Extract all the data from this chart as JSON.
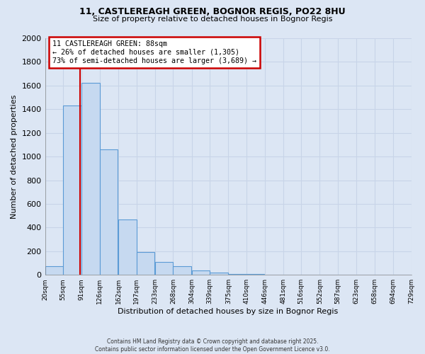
{
  "title1": "11, CASTLEREAGH GREEN, BOGNOR REGIS, PO22 8HU",
  "title2": "Size of property relative to detached houses in Bognor Regis",
  "xlabel": "Distribution of detached houses by size in Bognor Regis",
  "ylabel": "Number of detached properties",
  "bin_edges": [
    20,
    55,
    91,
    126,
    162,
    197,
    233,
    268,
    304,
    339,
    375,
    410,
    446,
    481,
    516,
    552,
    587,
    623,
    658,
    694,
    729
  ],
  "bin_labels": [
    "20sqm",
    "55sqm",
    "91sqm",
    "126sqm",
    "162sqm",
    "197sqm",
    "233sqm",
    "268sqm",
    "304sqm",
    "339sqm",
    "375sqm",
    "410sqm",
    "446sqm",
    "481sqm",
    "516sqm",
    "552sqm",
    "587sqm",
    "623sqm",
    "658sqm",
    "694sqm",
    "729sqm"
  ],
  "bar_heights": [
    75,
    1430,
    1620,
    1060,
    470,
    195,
    110,
    75,
    35,
    20,
    10,
    5,
    3,
    2,
    1,
    1,
    0,
    0,
    0,
    0
  ],
  "bar_color": "#c6d9f0",
  "bar_edge_color": "#5b9bd5",
  "vline_x": 88,
  "annotation_title": "11 CASTLEREAGH GREEN: 88sqm",
  "annotation_line1": "← 26% of detached houses are smaller (1,305)",
  "annotation_line2": "73% of semi-detached houses are larger (3,689) →",
  "annotation_box_color": "#ffffff",
  "annotation_box_edge_color": "#cc0000",
  "vline_color": "#cc0000",
  "ylim": [
    0,
    2000
  ],
  "yticks": [
    0,
    200,
    400,
    600,
    800,
    1000,
    1200,
    1400,
    1600,
    1800,
    2000
  ],
  "footer1": "Contains HM Land Registry data © Crown copyright and database right 2025.",
  "footer2": "Contains public sector information licensed under the Open Government Licence v3.0.",
  "bg_color": "#dce6f4",
  "plot_bg_color": "#dce6f4",
  "grid_color": "#c8d4e8"
}
